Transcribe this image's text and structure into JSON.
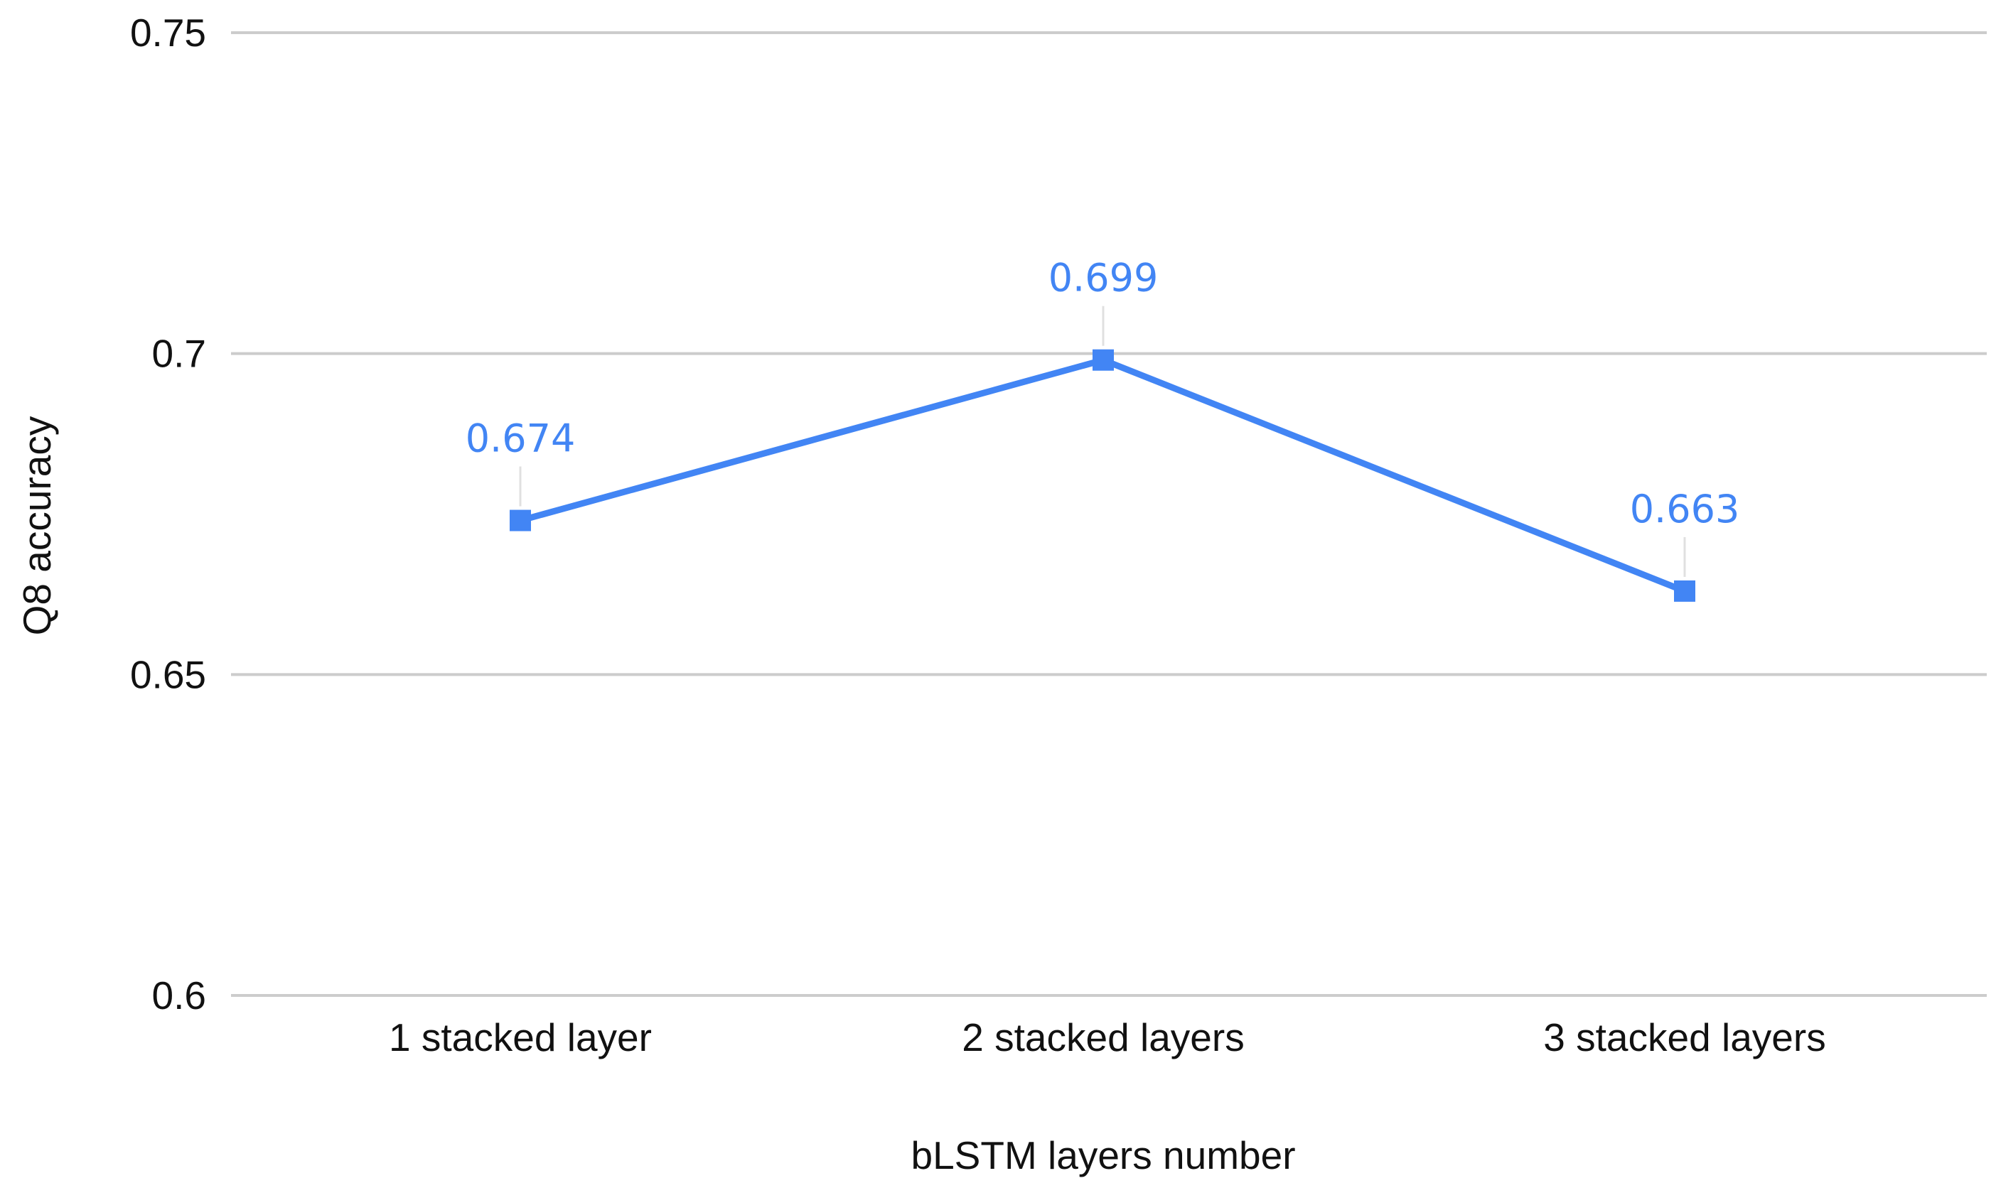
{
  "chart_data": {
    "type": "line",
    "title": "",
    "xlabel": "bLSTM layers number",
    "ylabel": "Q8 accuracy",
    "categories": [
      "1 stacked layer",
      "2 stacked layers",
      "3 stacked layers"
    ],
    "series": [
      {
        "values": [
          0.674,
          0.699,
          0.663
        ],
        "value_labels": [
          "0.674",
          "0.699",
          "0.663"
        ],
        "color": "#4285f4",
        "marker": "square"
      }
    ],
    "ylim": [
      0.6,
      0.75
    ],
    "yticks": [
      0.6,
      0.65,
      0.7,
      0.75
    ],
    "ytick_labels": [
      "0.6",
      "0.65",
      "0.7",
      "0.75"
    ],
    "grid": true,
    "gridline_color": "#cccccc",
    "legend": "none"
  }
}
